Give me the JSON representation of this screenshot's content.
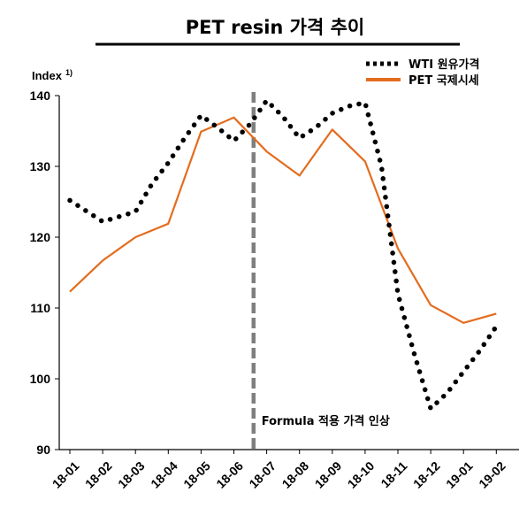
{
  "chart_data": {
    "type": "line",
    "title": "PET resin 가격 추이",
    "ylabel": "Index",
    "ylabel_sup": "1)",
    "xlabel": "",
    "ylim": [
      90,
      140
    ],
    "yticks": [
      "90",
      "100",
      "110",
      "120",
      "130",
      "140"
    ],
    "categories": [
      "18-01",
      "18-02",
      "18-03",
      "18-04",
      "18-05",
      "18-06",
      "18-07",
      "18-08",
      "18-09",
      "18-10",
      "18-11",
      "18-12",
      "19-01",
      "19-02"
    ],
    "series": [
      {
        "name": "WTI 원유가격",
        "style": "dotted",
        "color": "#000000",
        "points": [
          {
            "x": 0.0,
            "y": 125.2
          },
          {
            "x": 1.0,
            "y": 122.2
          },
          {
            "x": 2.0,
            "y": 123.6
          },
          {
            "x": 2.5,
            "y": 127.5
          },
          {
            "x": 3.0,
            "y": 130.5
          },
          {
            "x": 3.5,
            "y": 134.0
          },
          {
            "x": 4.0,
            "y": 137.2
          },
          {
            "x": 4.5,
            "y": 135.5
          },
          {
            "x": 5.0,
            "y": 133.6
          },
          {
            "x": 5.5,
            "y": 136.0
          },
          {
            "x": 6.0,
            "y": 139.3
          },
          {
            "x": 6.5,
            "y": 137.0
          },
          {
            "x": 7.0,
            "y": 134.0
          },
          {
            "x": 7.5,
            "y": 135.5
          },
          {
            "x": 8.0,
            "y": 137.5
          },
          {
            "x": 8.5,
            "y": 138.5
          },
          {
            "x": 9.0,
            "y": 139.0
          },
          {
            "x": 9.5,
            "y": 130.0
          },
          {
            "x": 10.0,
            "y": 112.0
          },
          {
            "x": 10.5,
            "y": 103.5
          },
          {
            "x": 11.0,
            "y": 95.8
          },
          {
            "x": 11.5,
            "y": 98.0
          },
          {
            "x": 12.0,
            "y": 101.0
          },
          {
            "x": 12.5,
            "y": 104.0
          },
          {
            "x": 13.0,
            "y": 107.4
          }
        ]
      },
      {
        "name": "PET 국제시세",
        "style": "solid",
        "color": "#E46C1E",
        "points": [
          {
            "x": 0.0,
            "y": 112.3
          },
          {
            "x": 1.0,
            "y": 116.7
          },
          {
            "x": 2.0,
            "y": 120.0
          },
          {
            "x": 3.0,
            "y": 121.9
          },
          {
            "x": 4.0,
            "y": 134.9
          },
          {
            "x": 5.0,
            "y": 136.9
          },
          {
            "x": 6.0,
            "y": 132.1
          },
          {
            "x": 7.0,
            "y": 128.7
          },
          {
            "x": 8.0,
            "y": 135.2
          },
          {
            "x": 9.0,
            "y": 130.7
          },
          {
            "x": 10.0,
            "y": 118.4
          },
          {
            "x": 11.0,
            "y": 110.4
          },
          {
            "x": 12.0,
            "y": 107.9
          },
          {
            "x": 13.0,
            "y": 109.2
          }
        ]
      }
    ],
    "annotations": [
      {
        "x": 5.6,
        "text": "Formula 적용 가격 인상",
        "style": "dashed-vertical-line",
        "color": "#7F7F7F"
      }
    ],
    "legend_position": "top-right",
    "grid": false
  }
}
